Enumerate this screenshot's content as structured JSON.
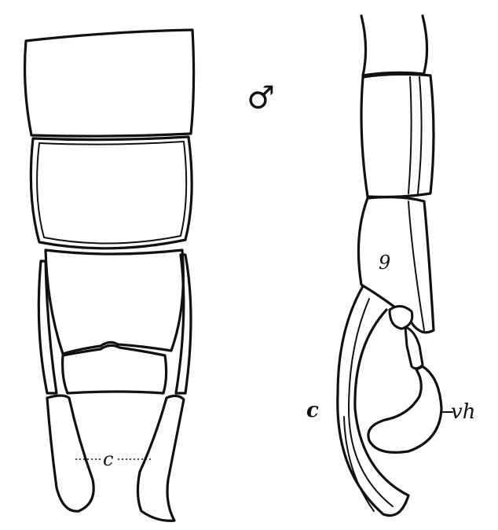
{
  "figure": {
    "sex_symbol": "♂",
    "labels": {
      "dorsal_c": "c",
      "lateral_c": "c",
      "segment_9": "9",
      "vh": "vh"
    }
  }
}
